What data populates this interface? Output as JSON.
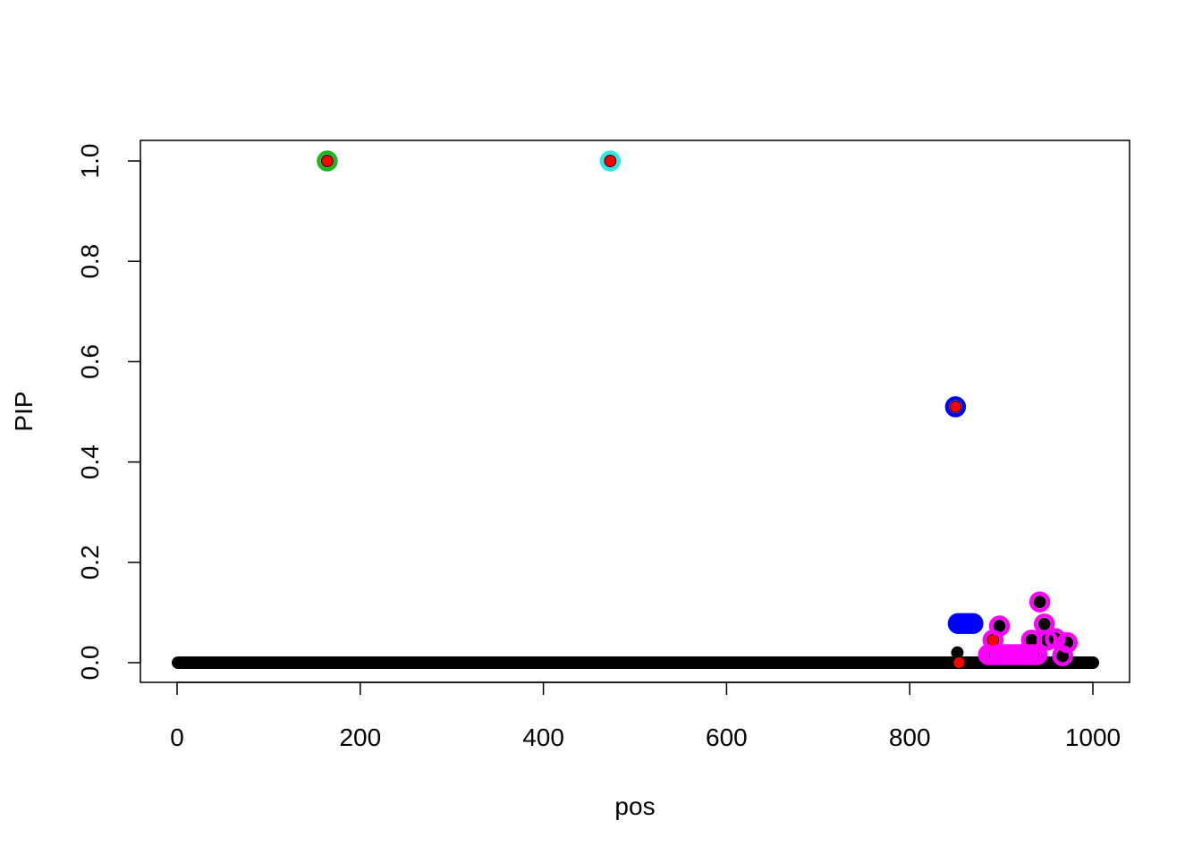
{
  "chart_data": {
    "type": "scatter",
    "title": "",
    "xlabel": "pos",
    "ylabel": "PIP",
    "xlim": [
      -40,
      1040
    ],
    "ylim": [
      -0.04,
      1.04
    ],
    "xticks": [
      0,
      200,
      400,
      600,
      800,
      1000
    ],
    "xtick_labels": [
      "0",
      "200",
      "400",
      "600",
      "800",
      "1000"
    ],
    "yticks": [
      0,
      0.2,
      0.4,
      0.6,
      0.8,
      1.0
    ],
    "ytick_labels": [
      "0.0",
      "0.2",
      "0.4",
      "0.6",
      "0.8",
      "1.0"
    ],
    "grid": false,
    "positions": [
      1,
      1000
    ],
    "baseline_pip": 0,
    "nonzero_pip": [
      {
        "pos": 164,
        "pip": 1.0
      },
      {
        "pos": 473,
        "pip": 1.0
      },
      {
        "pos": 850,
        "pip": 0.51
      },
      {
        "pos": 852,
        "pip": 0.02
      },
      {
        "pos": 853,
        "pip": 0.078
      },
      {
        "pos": 857,
        "pip": 0.078
      },
      {
        "pos": 861,
        "pip": 0.078
      },
      {
        "pos": 865,
        "pip": 0.078
      },
      {
        "pos": 869,
        "pip": 0.078
      },
      {
        "pos": 886,
        "pip": 0.016
      },
      {
        "pos": 890,
        "pip": 0.016
      },
      {
        "pos": 891,
        "pip": 0.045
      },
      {
        "pos": 894,
        "pip": 0.016
      },
      {
        "pos": 898,
        "pip": 0.073
      },
      {
        "pos": 899,
        "pip": 0.016
      },
      {
        "pos": 903,
        "pip": 0.016
      },
      {
        "pos": 907,
        "pip": 0.016
      },
      {
        "pos": 912,
        "pip": 0.016
      },
      {
        "pos": 916,
        "pip": 0.016
      },
      {
        "pos": 920,
        "pip": 0.016
      },
      {
        "pos": 925,
        "pip": 0.016
      },
      {
        "pos": 929,
        "pip": 0.016
      },
      {
        "pos": 933,
        "pip": 0.045
      },
      {
        "pos": 934,
        "pip": 0.016
      },
      {
        "pos": 939,
        "pip": 0.016
      },
      {
        "pos": 942,
        "pip": 0.121
      },
      {
        "pos": 947,
        "pip": 0.077
      },
      {
        "pos": 950,
        "pip": 0.045
      },
      {
        "pos": 959,
        "pip": 0.048
      },
      {
        "pos": 967,
        "pip": 0.014
      },
      {
        "pos": 972,
        "pip": 0.04
      }
    ],
    "credible_sets": [
      {
        "color": "#22b422",
        "pos": [
          164
        ]
      },
      {
        "color": "#33e6e6",
        "pos": [
          473
        ]
      },
      {
        "color": "#0000ff",
        "pos": [
          850,
          853,
          857,
          861,
          865,
          869
        ]
      },
      {
        "color": "#ff00ff",
        "pos": [
          886,
          890,
          891,
          894,
          898,
          899,
          903,
          907,
          912,
          916,
          920,
          925,
          929,
          933,
          934,
          939,
          942,
          947,
          950,
          959,
          967,
          972
        ]
      }
    ],
    "true_effects": {
      "color": "#ff0000",
      "pos": [
        164,
        473,
        850,
        854,
        891
      ]
    },
    "point_color": "#000000"
  }
}
